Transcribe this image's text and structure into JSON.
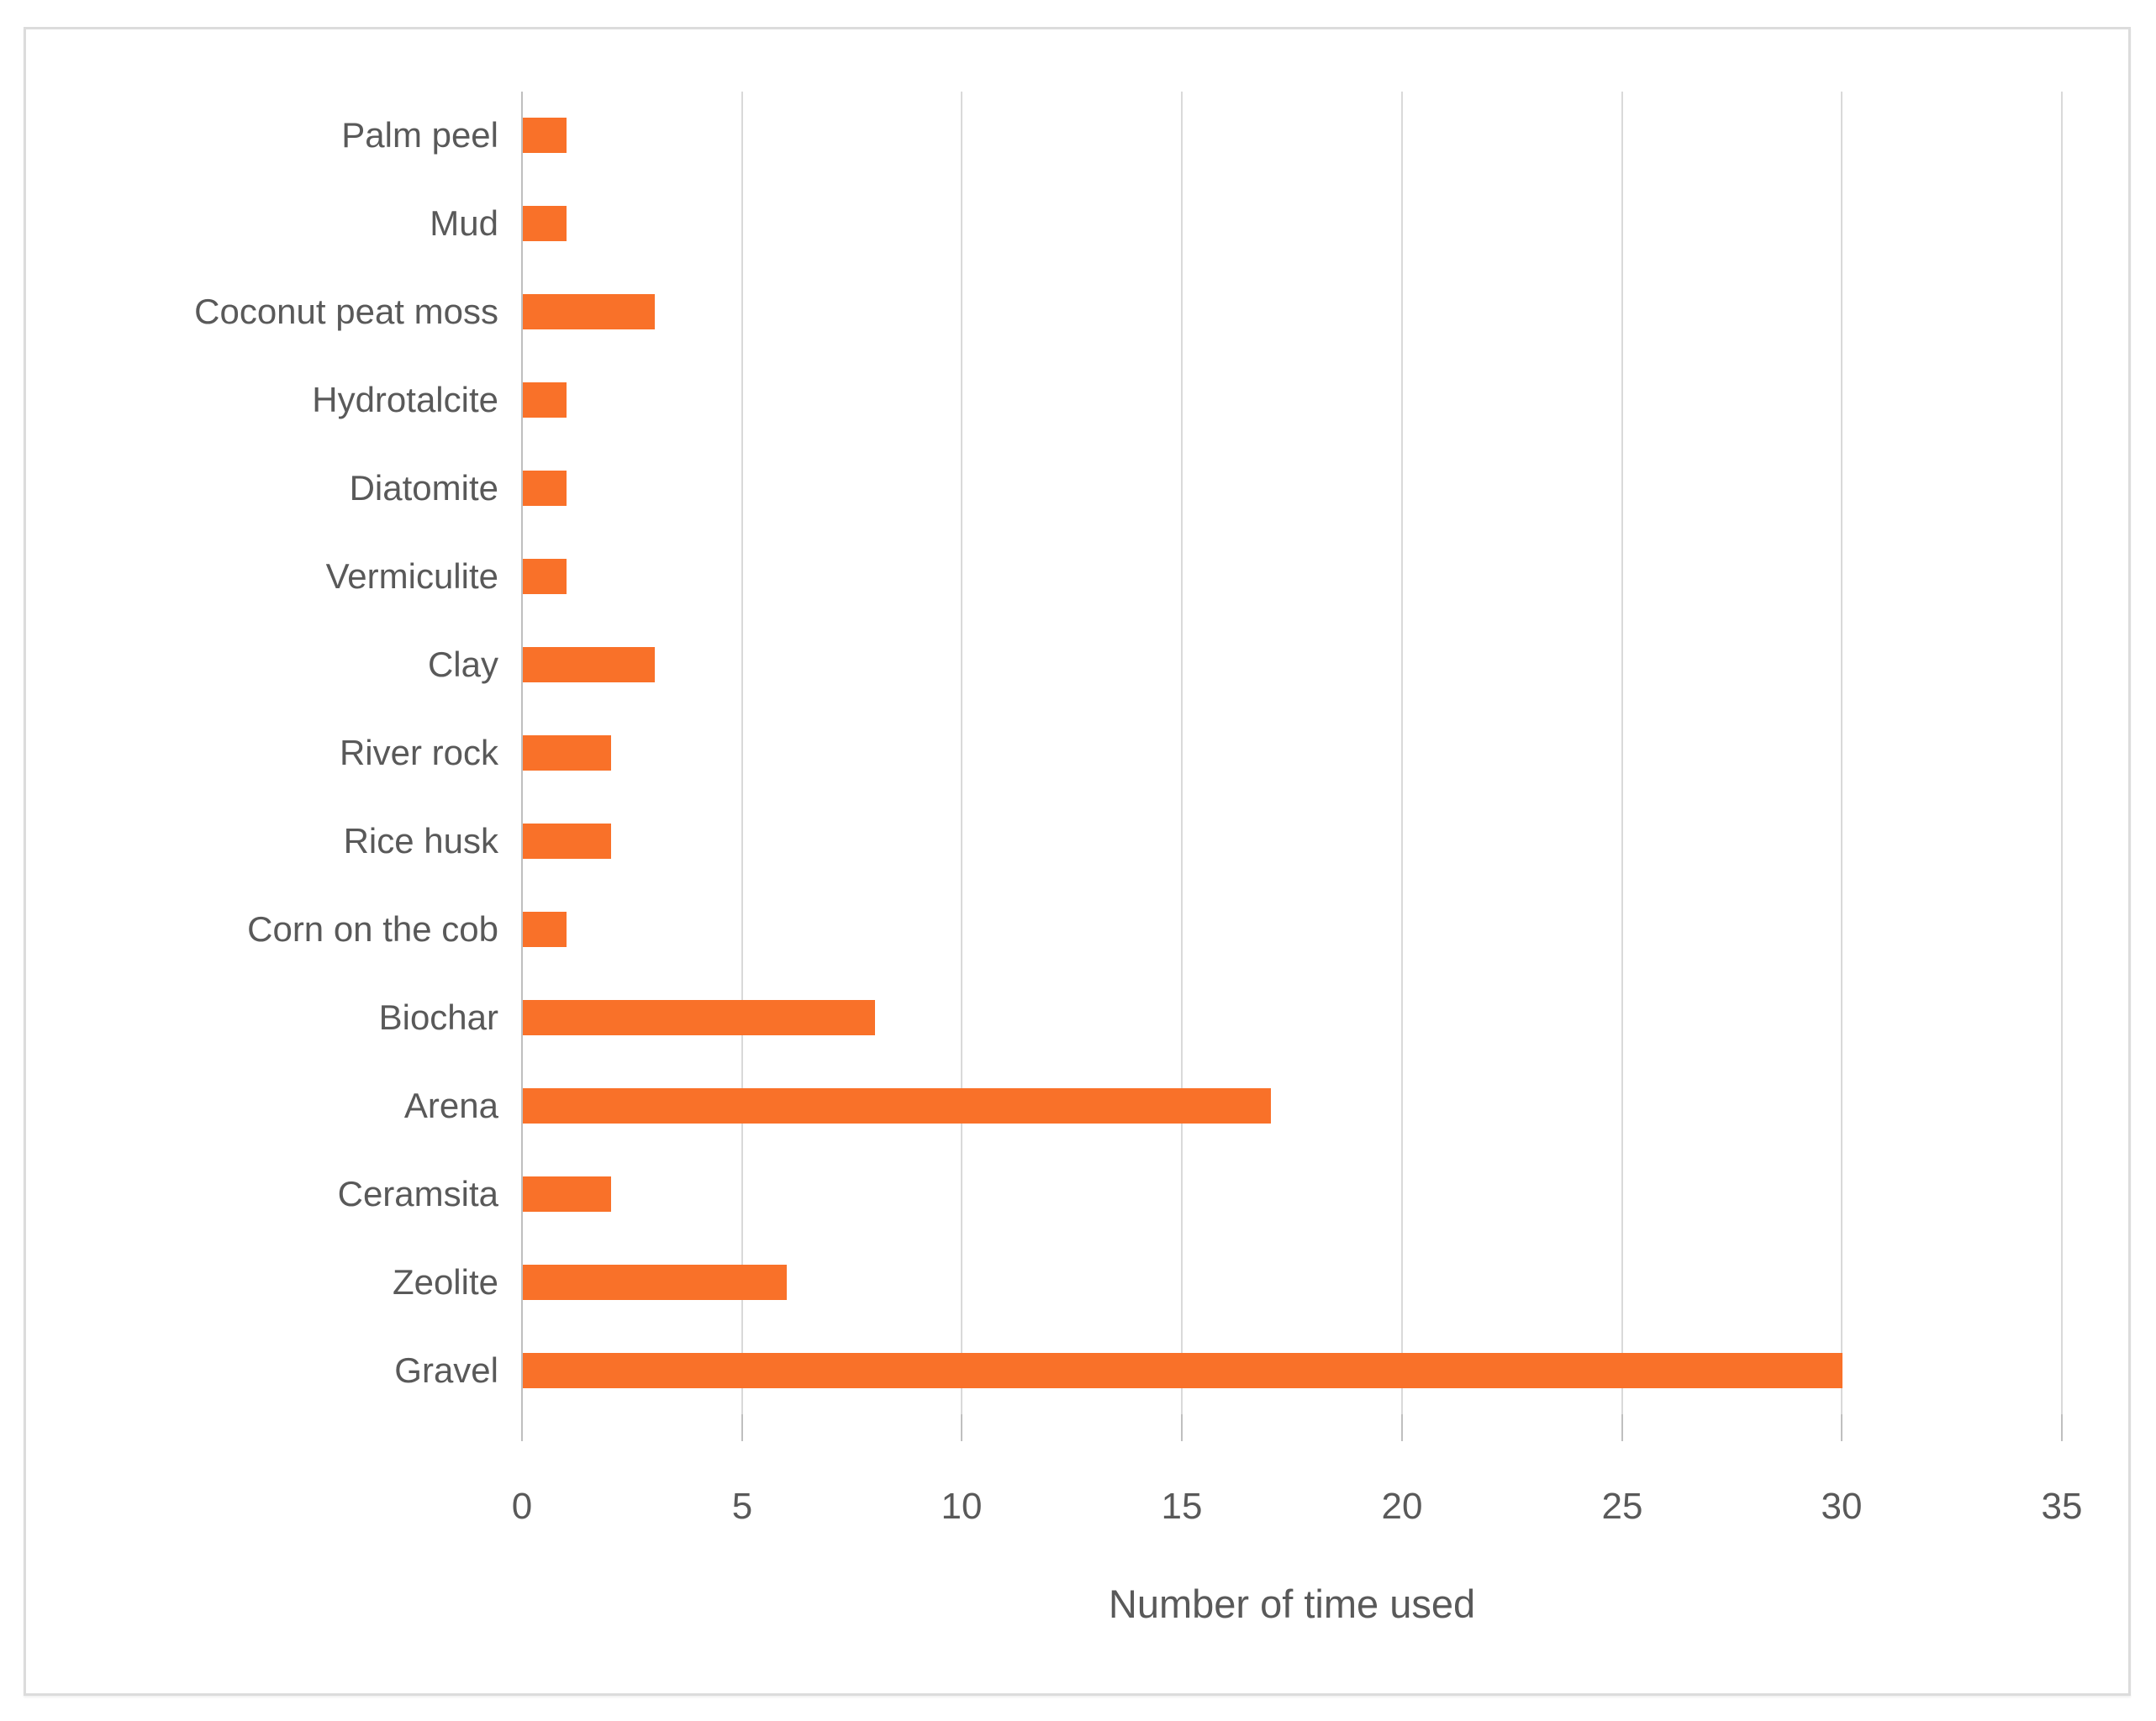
{
  "chart_data": {
    "type": "bar",
    "orientation": "horizontal",
    "categories": [
      "Palm peel",
      "Mud",
      "Coconut peat moss",
      "Hydrotalcite",
      "Diatomite",
      "Vermiculite",
      "Clay",
      "River rock",
      "Rice husk",
      "Corn on the cob",
      "Biochar",
      "Arena",
      "Ceramsita",
      "Zeolite",
      "Gravel"
    ],
    "values": [
      1,
      1,
      3,
      1,
      1,
      1,
      3,
      2,
      2,
      1,
      8,
      17,
      2,
      6,
      30
    ],
    "title": "",
    "xlabel": "Number of time used",
    "ylabel": "",
    "xlim": [
      0,
      35
    ],
    "xticks": [
      0,
      5,
      10,
      15,
      20,
      25,
      30,
      35
    ],
    "grid": "vertical-on",
    "legend": "none",
    "colors": {
      "bar": "#F97129",
      "gridline": "#d9d9d9",
      "axis_line": "#bfbfbf",
      "tick_mark": "#bfbfbf",
      "label_text": "#595959",
      "frame_border": "#dcdcdc",
      "background": "#ffffff"
    }
  }
}
